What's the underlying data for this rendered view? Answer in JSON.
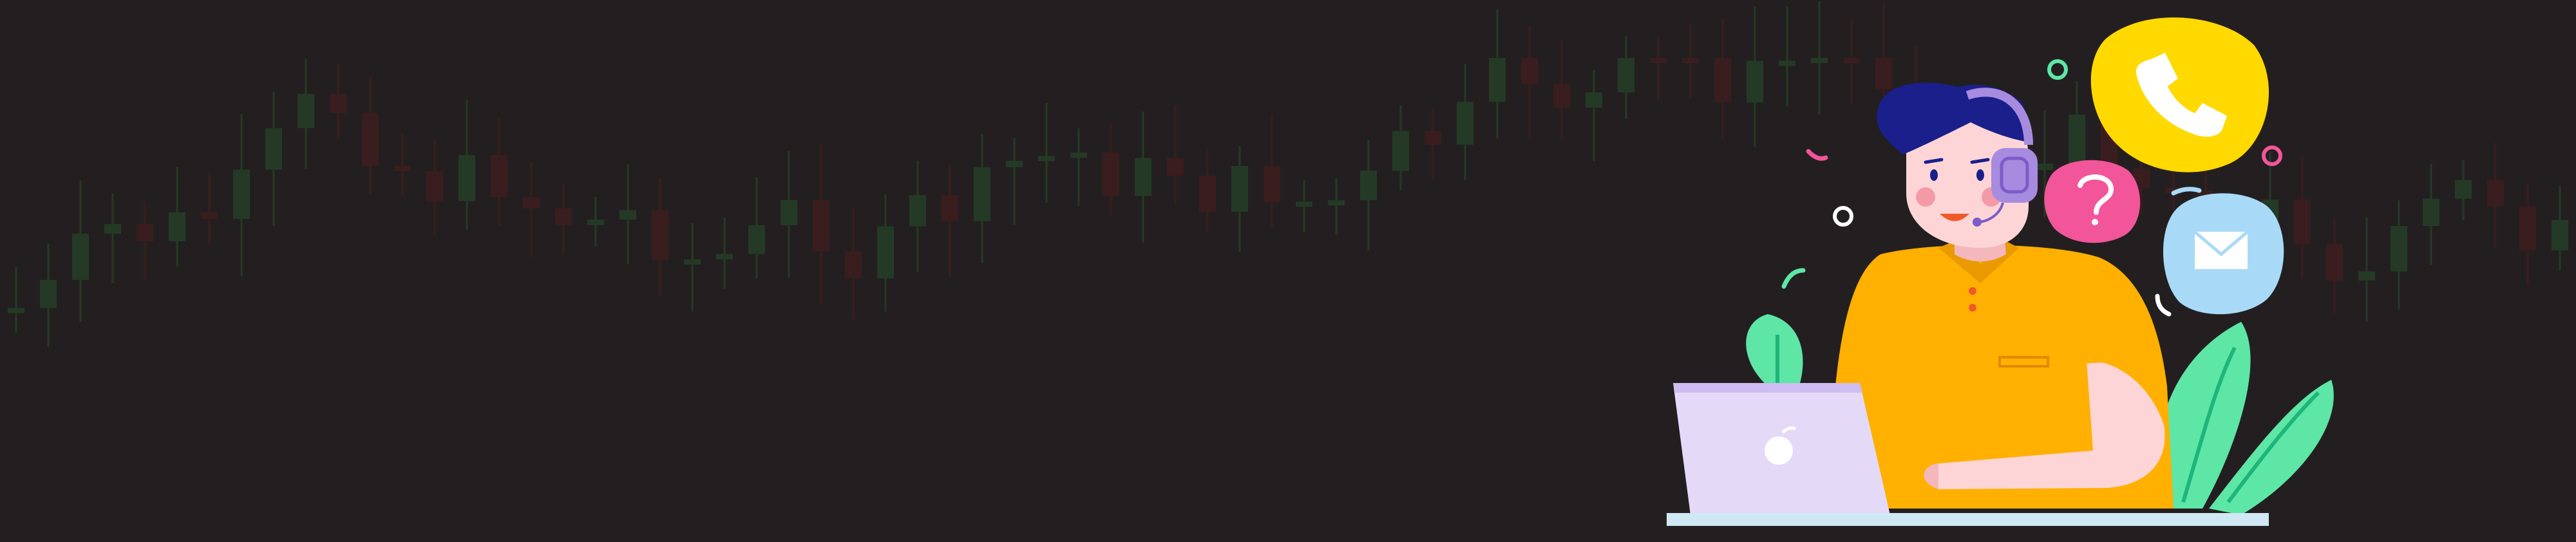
{
  "palette": {
    "background": "#231f20",
    "candle_up": "#243a26",
    "candle_down": "#3a1d1f",
    "shirt": "#ffb000",
    "skin": "#fdd5d6",
    "hair": "#1a1f8c",
    "headset": "#a78bdf",
    "laptop": "#e4d9f7",
    "desk": "#cfe8f4",
    "plant": "#5ee6a6",
    "phone_bubble": "#ffd900",
    "question_bubble": "#f2559a",
    "mail_bubble": "#a8daf7"
  },
  "icons": [
    "phone-icon",
    "question-mark-icon",
    "envelope-icon",
    "apple-logo-icon",
    "headset-icon"
  ]
}
